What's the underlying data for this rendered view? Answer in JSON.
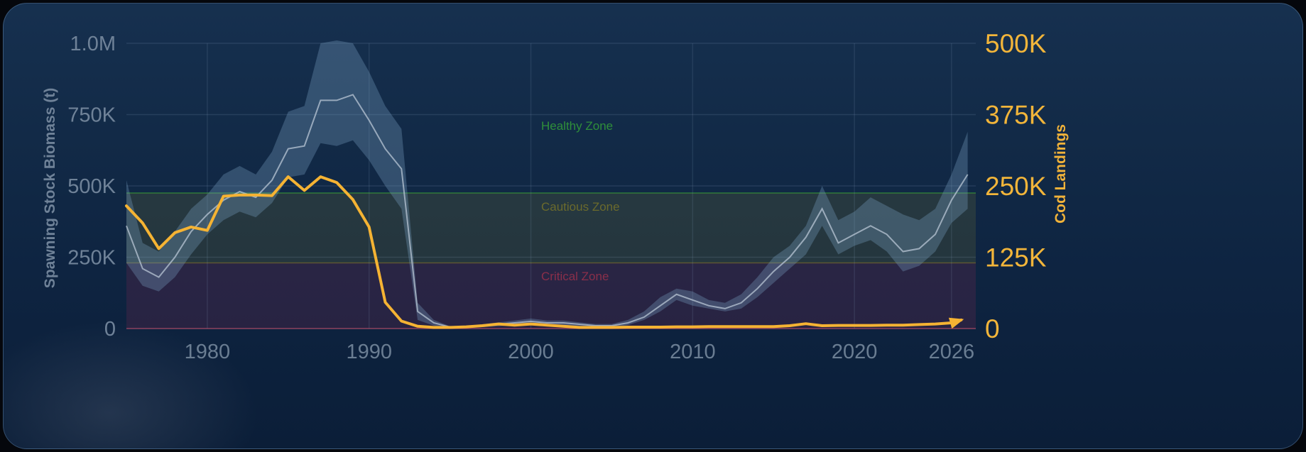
{
  "chart_data": {
    "type": "line",
    "title": "",
    "xlabel": "",
    "ylabel": "Spawning Stock Biomass (t)",
    "y2label": "Cod Landings",
    "xlim": [
      1975,
      2027.5
    ],
    "ylim": [
      0,
      1000000
    ],
    "y2lim": [
      0,
      500000
    ],
    "x_ticks": [
      "1980",
      "1990",
      "2000",
      "2010",
      "2020",
      "2026"
    ],
    "x_tick_values": [
      1980,
      1990,
      2000,
      2010,
      2020,
      2026
    ],
    "y_ticks": [
      "0",
      "250K",
      "500K",
      "750K",
      "1.0M"
    ],
    "y_tick_values": [
      0,
      250000,
      500000,
      750000,
      1000000
    ],
    "y2_ticks": [
      "0",
      "125K",
      "250K",
      "375K",
      "500K"
    ],
    "y2_tick_values": [
      0,
      125000,
      250000,
      375000,
      500000
    ],
    "grid": true,
    "zones": [
      {
        "name": "Healthy Zone",
        "from": 475000,
        "to": 1000000,
        "color": "#2f8f3a"
      },
      {
        "name": "Cautious Zone",
        "from": 230000,
        "to": 475000,
        "color": "#6b6a2c"
      },
      {
        "name": "Critical Zone",
        "from": 0,
        "to": 230000,
        "color": "#8a2f4a"
      }
    ],
    "series": [
      {
        "axis": "left",
        "color": "#b9c7d6",
        "x": [
          1975,
          1976,
          1977,
          1978,
          1979,
          1980,
          1981,
          1982,
          1983,
          1984,
          1985,
          1986,
          1987,
          1988,
          1989,
          1990,
          1991,
          1992,
          1993,
          1994,
          1995,
          1996,
          1997,
          1998,
          1999,
          2000,
          2001,
          2002,
          2003,
          2004,
          2005,
          2006,
          2007,
          2008,
          2009,
          2010,
          2011,
          2012,
          2013,
          2014,
          2015,
          2016,
          2017,
          2018,
          2019,
          2020,
          2021,
          2022,
          2023,
          2024,
          2025,
          2026,
          2027
        ],
        "values": [
          360000,
          210000,
          180000,
          250000,
          340000,
          400000,
          450000,
          480000,
          460000,
          520000,
          630000,
          640000,
          800000,
          800000,
          820000,
          730000,
          630000,
          560000,
          60000,
          20000,
          5000,
          5000,
          10000,
          15000,
          20000,
          25000,
          20000,
          20000,
          15000,
          10000,
          10000,
          20000,
          40000,
          80000,
          120000,
          100000,
          80000,
          70000,
          90000,
          140000,
          200000,
          250000,
          320000,
          420000,
          300000,
          330000,
          360000,
          330000,
          270000,
          280000,
          330000,
          450000,
          540000
        ],
        "lower": [
          230000,
          150000,
          130000,
          180000,
          260000,
          330000,
          380000,
          410000,
          390000,
          440000,
          530000,
          540000,
          650000,
          640000,
          660000,
          590000,
          500000,
          420000,
          30000,
          10000,
          2000,
          2000,
          5000,
          8000,
          12000,
          15000,
          12000,
          12000,
          8000,
          5000,
          5000,
          12000,
          30000,
          60000,
          100000,
          80000,
          70000,
          60000,
          70000,
          110000,
          160000,
          210000,
          260000,
          360000,
          260000,
          290000,
          310000,
          270000,
          200000,
          220000,
          270000,
          370000,
          420000
        ],
        "upper": [
          520000,
          300000,
          270000,
          340000,
          420000,
          470000,
          540000,
          570000,
          540000,
          620000,
          760000,
          780000,
          1000000,
          1010000,
          1000000,
          900000,
          780000,
          700000,
          90000,
          30000,
          8000,
          8000,
          15000,
          22000,
          28000,
          35000,
          28000,
          28000,
          22000,
          16000,
          16000,
          30000,
          60000,
          110000,
          140000,
          130000,
          100000,
          90000,
          120000,
          180000,
          250000,
          290000,
          360000,
          500000,
          380000,
          410000,
          460000,
          430000,
          400000,
          380000,
          420000,
          540000,
          690000
        ]
      },
      {
        "name": "Cod Landings",
        "axis": "right",
        "color": "#f5b333",
        "x": [
          1975,
          1976,
          1977,
          1978,
          1979,
          1980,
          1981,
          1982,
          1983,
          1984,
          1985,
          1986,
          1987,
          1988,
          1989,
          1990,
          1991,
          1992,
          1993,
          1994,
          1995,
          1996,
          1997,
          1998,
          1999,
          2000,
          2001,
          2002,
          2003,
          2004,
          2005,
          2006,
          2007,
          2008,
          2009,
          2010,
          2011,
          2012,
          2013,
          2014,
          2015,
          2016,
          2017,
          2018,
          2019,
          2020,
          2021,
          2022,
          2023,
          2024,
          2025,
          2026,
          2026.6
        ],
        "values": [
          215000,
          185000,
          140000,
          168000,
          178000,
          172000,
          232000,
          234000,
          234000,
          233000,
          266000,
          242000,
          266000,
          256000,
          226000,
          178000,
          46000,
          13000,
          4000,
          2000,
          2000,
          3000,
          5000,
          8000,
          6000,
          8000,
          6000,
          4000,
          2000,
          2000,
          2000,
          2500,
          2500,
          2500,
          3000,
          3000,
          3500,
          3500,
          3500,
          3500,
          3500,
          5000,
          8500,
          5000,
          5500,
          5500,
          5500,
          6000,
          6000,
          7000,
          8000,
          10000,
          15000
        ]
      }
    ]
  }
}
